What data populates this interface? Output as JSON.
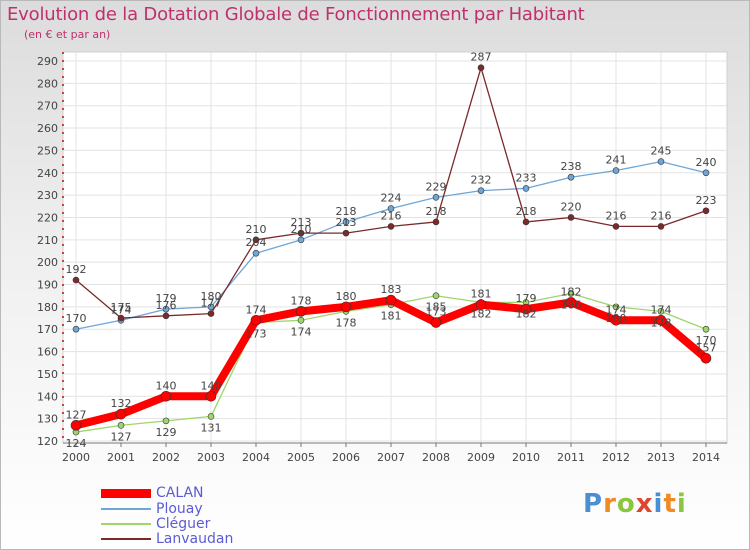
{
  "chart_data": {
    "type": "line",
    "title": "Evolution de la Dotation Globale de Fonctionnement par Habitant",
    "subtitle": "(en € et par an)",
    "xlabel": "",
    "ylabel": "",
    "x": [
      "2000",
      "2001",
      "2002",
      "2003",
      "2004",
      "2005",
      "2006",
      "2007",
      "2008",
      "2009",
      "2010",
      "2011",
      "2012",
      "2013",
      "2014"
    ],
    "y_ticks": [
      "120",
      "130",
      "140",
      "150",
      "160",
      "170",
      "180",
      "190",
      "200",
      "210",
      "220",
      "230",
      "240",
      "250",
      "260",
      "270",
      "280",
      "290"
    ],
    "ylim": [
      120,
      290
    ],
    "grid": true,
    "legend_position": "bottom-left",
    "series": [
      {
        "name": "CALAN",
        "color": "#ff0000",
        "values": [
          127,
          132,
          140,
          140,
          174,
          178,
          180,
          183,
          173,
          181,
          179,
          182,
          174,
          174,
          157
        ]
      },
      {
        "name": "Plouay",
        "color": "#6ea6d8",
        "values": [
          170,
          174,
          179,
          180,
          204,
          210,
          218,
          224,
          229,
          232,
          233,
          238,
          241,
          245,
          240
        ]
      },
      {
        "name": "Cléguer",
        "color": "#9ed66b",
        "values": [
          124,
          127,
          129,
          131,
          173,
          174,
          178,
          181,
          185,
          182,
          182,
          186,
          180,
          178,
          170
        ]
      },
      {
        "name": "Lanvaudan",
        "color": "#7a2a2a",
        "values": [
          192,
          175,
          176,
          177,
          210,
          213,
          213,
          216,
          218,
          287,
          218,
          220,
          216,
          216,
          223
        ]
      }
    ]
  },
  "logo": {
    "letters": [
      "P",
      "r",
      "o",
      "x",
      "i",
      "t",
      "i"
    ],
    "colors": [
      "#4a8fd4",
      "#f08a24",
      "#8cc63f",
      "#e0462e",
      "#4a8fd4",
      "#f08a24",
      "#8cc63f"
    ]
  }
}
